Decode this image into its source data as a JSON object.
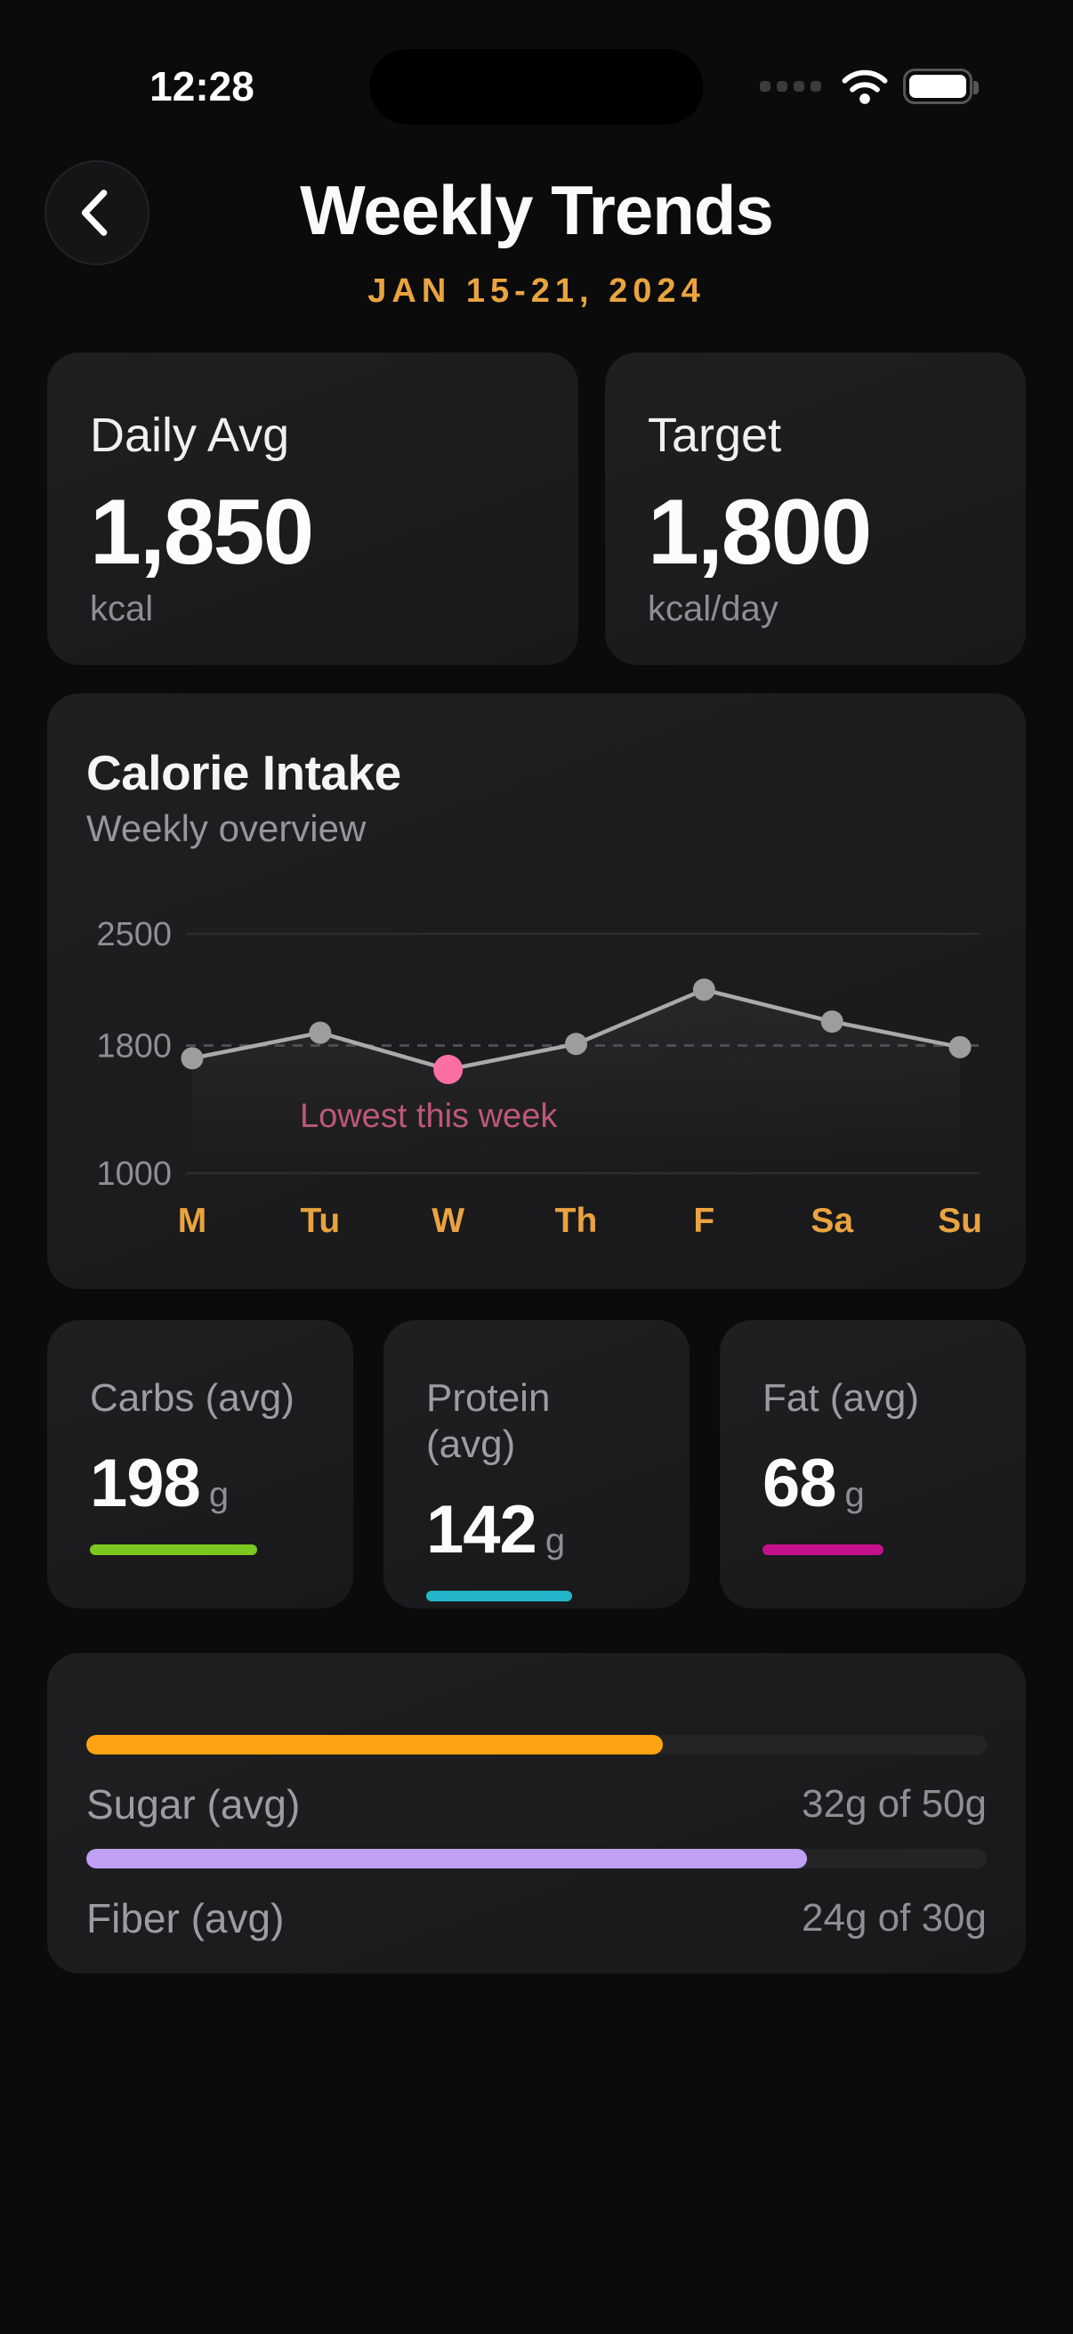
{
  "colors": {
    "page_bg": "#0B0B0C",
    "card_bg": "#1B1B1D",
    "accent_orange": "#E9A43F"
  },
  "status_bar": {
    "time": "12:28",
    "icons": [
      "cellular-signal",
      "wifi",
      "battery-full"
    ]
  },
  "header": {
    "title": "Weekly Trends",
    "date_range": "JAN 15-21, 2024",
    "back_icon": "chevron-left"
  },
  "summary_cards": [
    {
      "label": "Daily Avg",
      "value": "1,850",
      "unit": "kcal"
    },
    {
      "label": "Target",
      "value": "1,800",
      "unit": "kcal/day"
    }
  ],
  "chart_data": {
    "type": "line",
    "title": "Calorie Intake",
    "subtitle": "Weekly overview",
    "categories": [
      "M",
      "Tu",
      "W",
      "Th",
      "F",
      "Sa",
      "Su"
    ],
    "series": [
      {
        "name": "Calories",
        "values": [
          1720,
          1880,
          1650,
          1810,
          2150,
          1950,
          1790
        ]
      }
    ],
    "ylim": [
      1000,
      2500
    ],
    "yticks": [
      {
        "value": 2500,
        "label": "2500",
        "style": "solid"
      },
      {
        "value": 1800,
        "label": "1800",
        "style": "dashed"
      },
      {
        "value": 1000,
        "label": "1000",
        "style": "solid"
      }
    ],
    "target_value": 1800,
    "highlight": {
      "index": 2,
      "category": "W",
      "label": "Lowest this week",
      "point_color": "#FC6FA5",
      "text_color": "#BE5878"
    },
    "style": {
      "line_color": "#AAAAAC",
      "point_color": "#9D9D9F",
      "axis_label_color": "#8E8E93",
      "x_label_color": "#E9A43F",
      "gridline_color": "#2D2D2F",
      "dashed_color": "#4E4E52",
      "area_fill": true
    },
    "grid": "horizontal",
    "legend": false
  },
  "macro_cards": [
    {
      "label": "Carbs (avg)",
      "value": "198",
      "unit": "g",
      "bar": {
        "pct": 76,
        "color": "#7CC81E"
      }
    },
    {
      "label": "Protein (avg)",
      "value": "142",
      "unit": "g",
      "bar": {
        "pct": 66,
        "color": "#23B5C9"
      }
    },
    {
      "label": "Fat (avg)",
      "value": "68",
      "unit": "g",
      "bar": {
        "pct": 55,
        "color": "#C5108C"
      }
    }
  ],
  "progress_card": {
    "rows": [
      {
        "label": "Sugar (avg)",
        "status": "32g of 50g",
        "bar": {
          "pct": 64,
          "color": "#FFA312"
        }
      },
      {
        "label": "Fiber (avg)",
        "status": "24g of 30g",
        "bar": {
          "pct": 80,
          "color": "#BFA0F5"
        }
      }
    ]
  }
}
